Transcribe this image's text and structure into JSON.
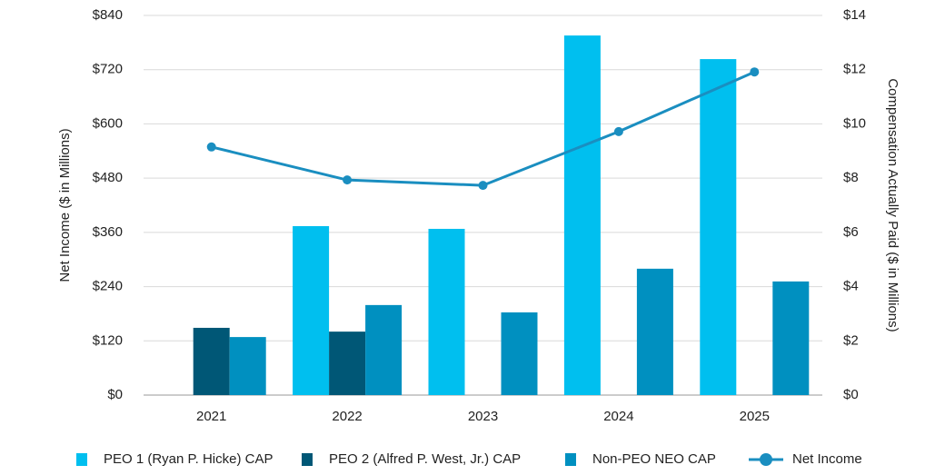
{
  "chart_data": {
    "type": "bar_line",
    "categories": [
      "2021",
      "2022",
      "2023",
      "2024",
      "2025"
    ],
    "ylabel": "Net Income ($ in Millions)",
    "y2label": "Compensation Actually Paid ($ in Millions)",
    "ylim": [
      0,
      840
    ],
    "yticks": [
      {
        "value": 0,
        "label": "$0"
      },
      {
        "value": 120,
        "label": "$120"
      },
      {
        "value": 240,
        "label": "$240"
      },
      {
        "value": 360,
        "label": "$360"
      },
      {
        "value": 480,
        "label": "$480"
      },
      {
        "value": 600,
        "label": "$600"
      },
      {
        "value": 720,
        "label": "$720"
      },
      {
        "value": 840,
        "label": "$840"
      }
    ],
    "y2lim": [
      0,
      14
    ],
    "y2ticks": [
      {
        "value": 0,
        "label": "$0"
      },
      {
        "value": 2,
        "label": "$2"
      },
      {
        "value": 4,
        "label": "$4"
      },
      {
        "value": 6,
        "label": "$6"
      },
      {
        "value": 8,
        "label": "$8"
      },
      {
        "value": 10,
        "label": "$10"
      },
      {
        "value": 12,
        "label": "$12"
      },
      {
        "value": 14,
        "label": "$14"
      }
    ],
    "grid": true,
    "legend": "bottom",
    "series": [
      {
        "name": "PEO 1 (Ryan P. Hicke) CAP",
        "color": "#00bfef",
        "kind": "bar",
        "axis": "y2",
        "values": [
          null,
          6.23,
          6.13,
          13.26,
          12.39
        ]
      },
      {
        "name": "PEO 2 (Alfred P. West, Jr.) CAP",
        "color": "#005776",
        "kind": "bar",
        "axis": "y2",
        "values": [
          2.48,
          2.34,
          null,
          null,
          null
        ]
      },
      {
        "name": "Non-PEO NEO CAP",
        "color": "#0090c0",
        "kind": "bar",
        "axis": "y2",
        "values": [
          2.14,
          3.32,
          3.05,
          4.66,
          4.19
        ]
      },
      {
        "name": "Net Income",
        "color": "#1a8ec0",
        "kind": "line",
        "axis": "y",
        "values": [
          549,
          476,
          464,
          583,
          715
        ]
      }
    ]
  }
}
